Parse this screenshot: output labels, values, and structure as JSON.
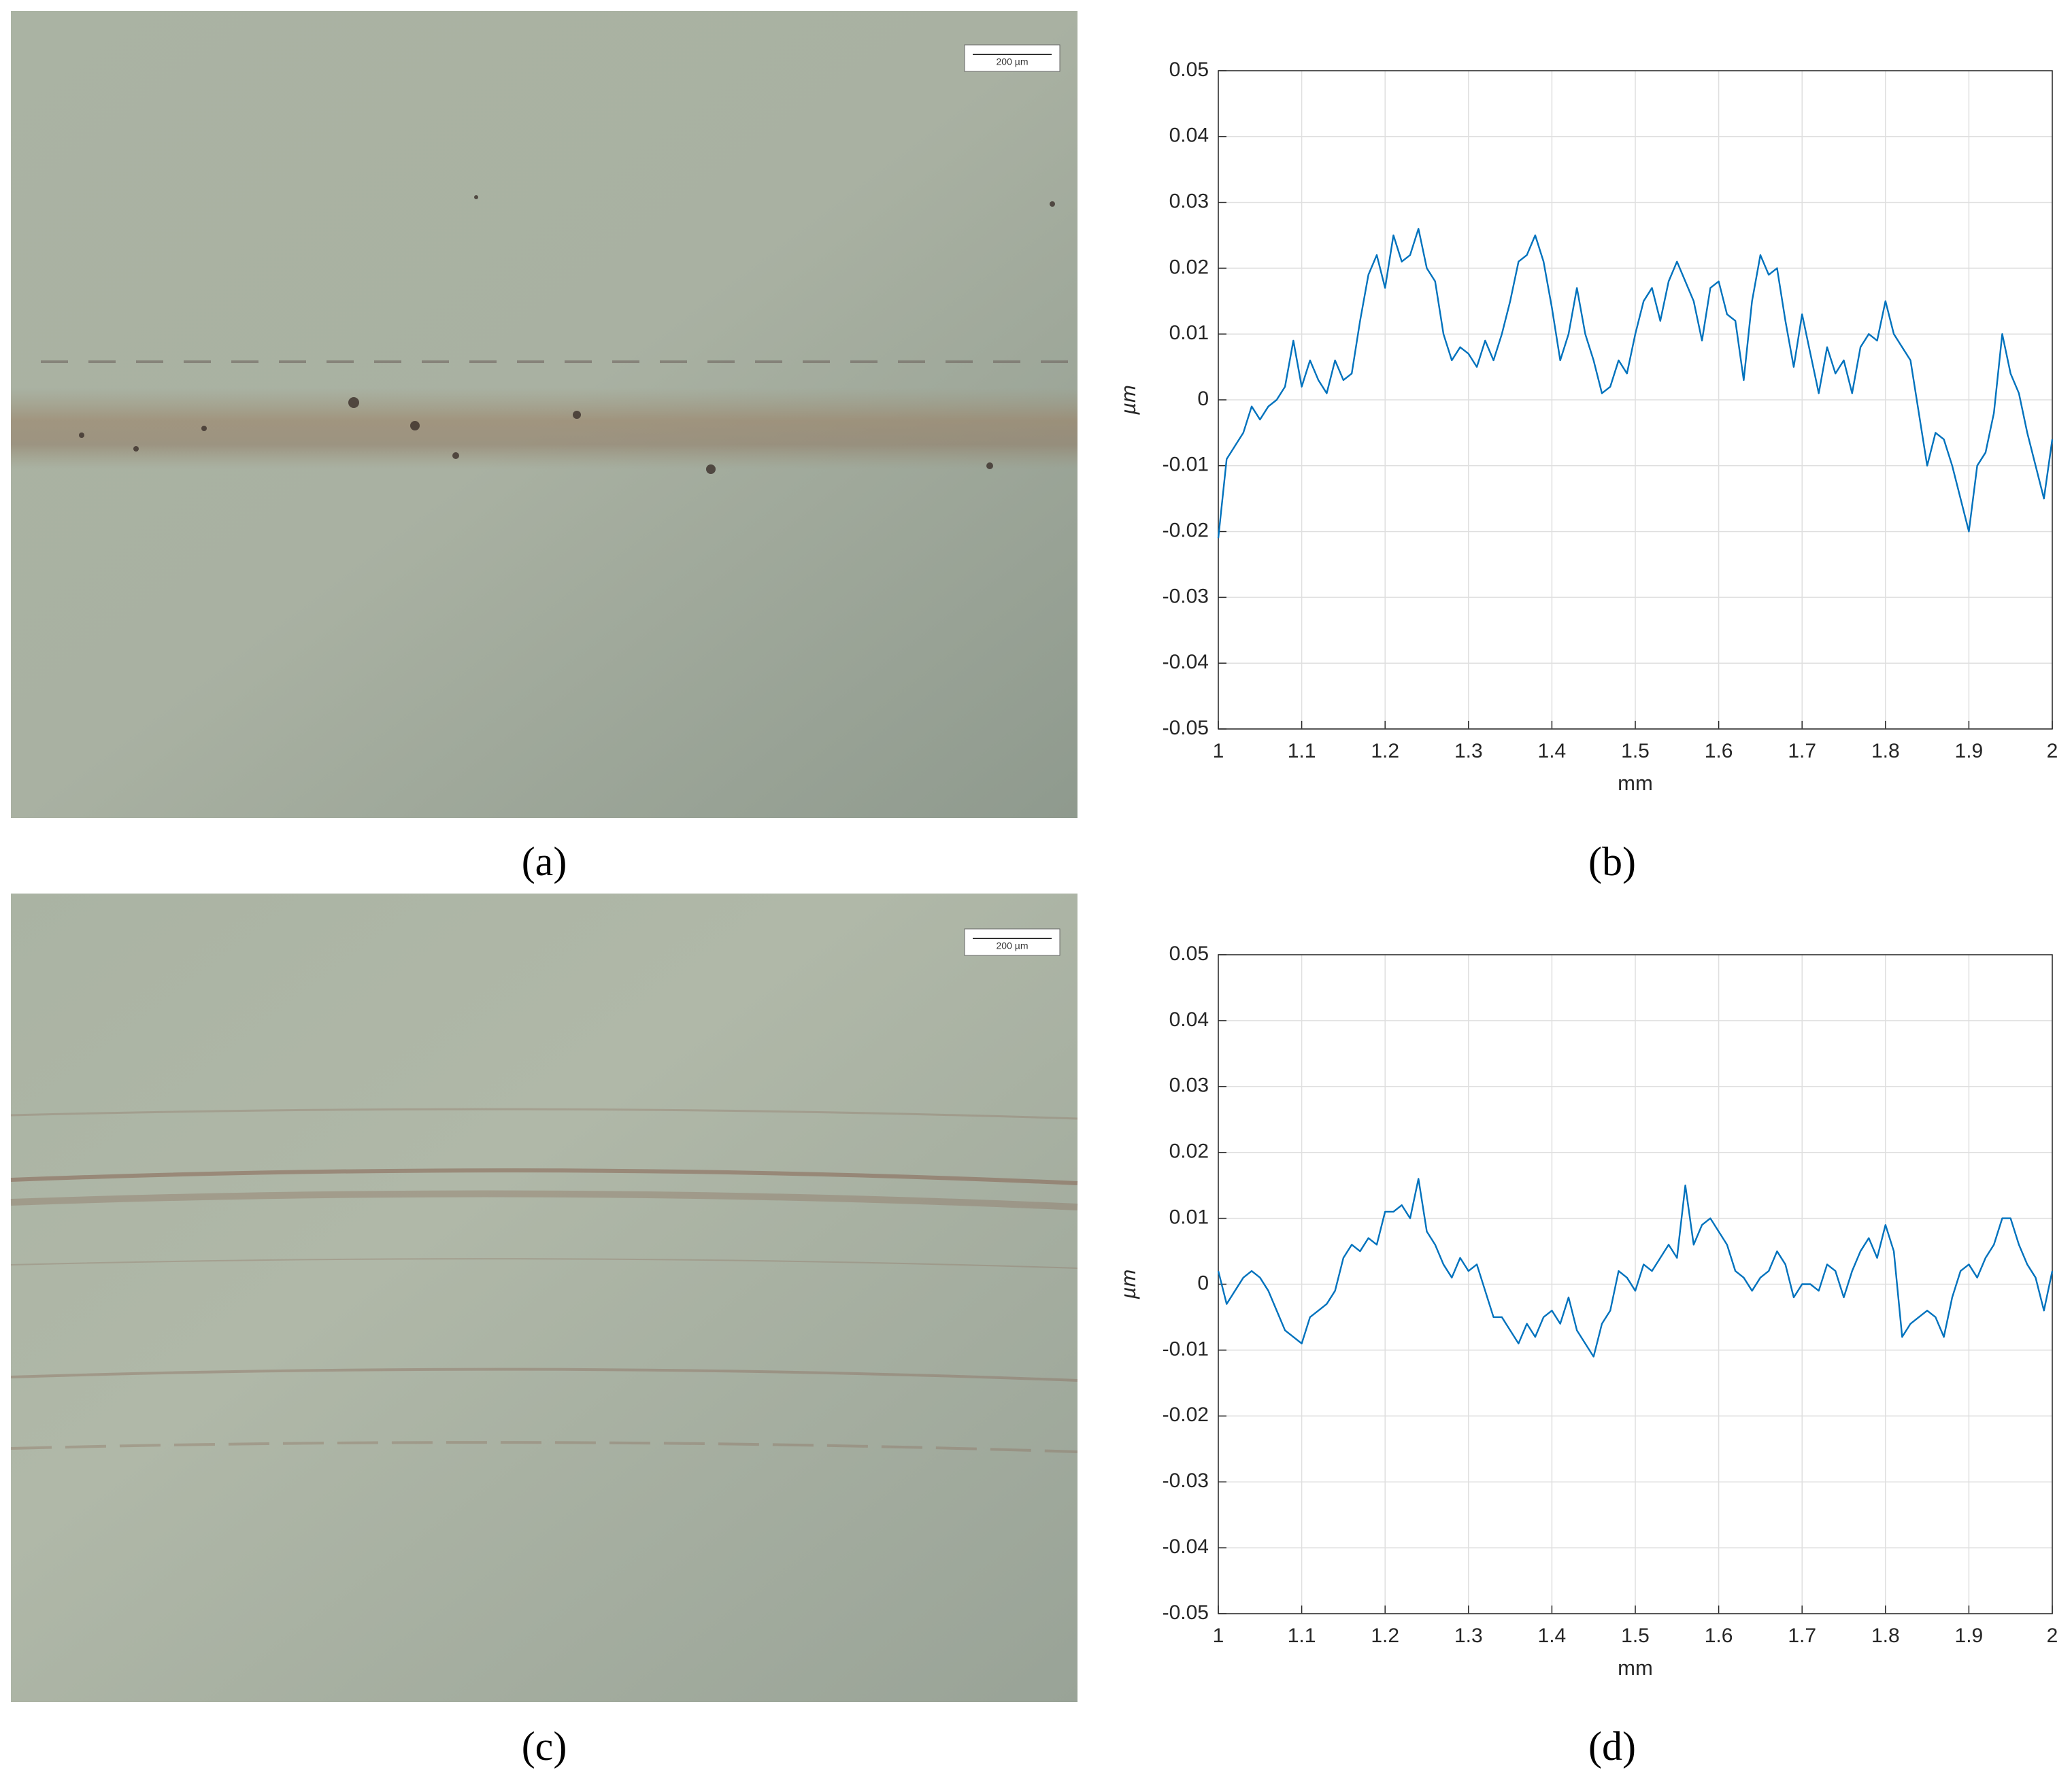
{
  "panels": [
    {
      "label": "(a)",
      "scale_bar": "200 µm"
    },
    {
      "label": "(b)"
    },
    {
      "label": "(c)",
      "scale_bar": "200 µm"
    },
    {
      "label": "(d)"
    }
  ],
  "chart_data": [
    {
      "type": "line",
      "xlabel": "mm",
      "ylabel": "µm",
      "color": "#0072bd",
      "grid": true,
      "xlim": [
        1,
        2
      ],
      "ylim": [
        -0.05,
        0.05
      ],
      "xticks": [
        1,
        1.1,
        1.2,
        1.3,
        1.4,
        1.5,
        1.6,
        1.7,
        1.8,
        1.9,
        2
      ],
      "yticks": [
        -0.05,
        -0.04,
        -0.03,
        -0.02,
        -0.01,
        0,
        0.01,
        0.02,
        0.03,
        0.04,
        0.05
      ],
      "x": [
        1,
        1.01,
        1.02,
        1.03,
        1.04,
        1.05,
        1.06,
        1.07,
        1.08,
        1.09,
        1.1,
        1.11,
        1.12,
        1.13,
        1.14,
        1.15,
        1.16,
        1.17,
        1.18,
        1.19,
        1.2,
        1.21,
        1.22,
        1.23,
        1.24,
        1.25,
        1.26,
        1.27,
        1.28,
        1.29,
        1.3,
        1.31,
        1.32,
        1.33,
        1.34,
        1.35,
        1.36,
        1.37,
        1.38,
        1.39,
        1.4,
        1.41,
        1.42,
        1.43,
        1.44,
        1.45,
        1.46,
        1.47,
        1.48,
        1.49,
        1.5,
        1.51,
        1.52,
        1.53,
        1.54,
        1.55,
        1.56,
        1.57,
        1.58,
        1.59,
        1.6,
        1.61,
        1.62,
        1.63,
        1.64,
        1.65,
        1.66,
        1.67,
        1.68,
        1.69,
        1.7,
        1.71,
        1.72,
        1.73,
        1.74,
        1.75,
        1.76,
        1.77,
        1.78,
        1.79,
        1.8,
        1.81,
        1.82,
        1.83,
        1.84,
        1.85,
        1.86,
        1.87,
        1.88,
        1.89,
        1.9,
        1.91,
        1.92,
        1.93,
        1.94,
        1.95,
        1.96,
        1.97,
        1.98,
        1.99,
        2
      ],
      "values": [
        -0.021,
        -0.009,
        -0.007,
        -0.005,
        -0.001,
        -0.003,
        -0.001,
        0.0,
        0.002,
        0.009,
        0.002,
        0.006,
        0.003,
        0.001,
        0.006,
        0.003,
        0.004,
        0.012,
        0.019,
        0.022,
        0.017,
        0.025,
        0.021,
        0.022,
        0.026,
        0.02,
        0.018,
        0.01,
        0.006,
        0.008,
        0.007,
        0.005,
        0.009,
        0.006,
        0.01,
        0.015,
        0.021,
        0.022,
        0.025,
        0.021,
        0.014,
        0.006,
        0.01,
        0.017,
        0.01,
        0.006,
        0.001,
        0.002,
        0.006,
        0.004,
        0.01,
        0.015,
        0.017,
        0.012,
        0.018,
        0.021,
        0.018,
        0.015,
        0.009,
        0.017,
        0.018,
        0.013,
        0.012,
        0.003,
        0.015,
        0.022,
        0.019,
        0.02,
        0.012,
        0.005,
        0.013,
        0.007,
        0.001,
        0.008,
        0.004,
        0.006,
        0.001,
        0.008,
        0.01,
        0.009,
        0.015,
        0.01,
        0.008,
        0.006,
        -0.002,
        -0.01,
        -0.005,
        -0.006,
        -0.01,
        -0.015,
        -0.02,
        -0.01,
        -0.008,
        -0.002,
        0.01,
        0.004,
        0.001,
        -0.005,
        -0.01,
        -0.015,
        -0.006
      ]
    },
    {
      "type": "line",
      "xlabel": "mm",
      "ylabel": "µm",
      "color": "#0072bd",
      "grid": true,
      "xlim": [
        1,
        2
      ],
      "ylim": [
        -0.05,
        0.05
      ],
      "xticks": [
        1,
        1.1,
        1.2,
        1.3,
        1.4,
        1.5,
        1.6,
        1.7,
        1.8,
        1.9,
        2
      ],
      "yticks": [
        -0.05,
        -0.04,
        -0.03,
        -0.02,
        -0.01,
        0,
        0.01,
        0.02,
        0.03,
        0.04,
        0.05
      ],
      "x": [
        1,
        1.01,
        1.02,
        1.03,
        1.04,
        1.05,
        1.06,
        1.07,
        1.08,
        1.09,
        1.1,
        1.11,
        1.12,
        1.13,
        1.14,
        1.15,
        1.16,
        1.17,
        1.18,
        1.19,
        1.2,
        1.21,
        1.22,
        1.23,
        1.24,
        1.25,
        1.26,
        1.27,
        1.28,
        1.29,
        1.3,
        1.31,
        1.32,
        1.33,
        1.34,
        1.35,
        1.36,
        1.37,
        1.38,
        1.39,
        1.4,
        1.41,
        1.42,
        1.43,
        1.44,
        1.45,
        1.46,
        1.47,
        1.48,
        1.49,
        1.5,
        1.51,
        1.52,
        1.53,
        1.54,
        1.55,
        1.56,
        1.57,
        1.58,
        1.59,
        1.6,
        1.61,
        1.62,
        1.63,
        1.64,
        1.65,
        1.66,
        1.67,
        1.68,
        1.69,
        1.7,
        1.71,
        1.72,
        1.73,
        1.74,
        1.75,
        1.76,
        1.77,
        1.78,
        1.79,
        1.8,
        1.81,
        1.82,
        1.83,
        1.84,
        1.85,
        1.86,
        1.87,
        1.88,
        1.89,
        1.9,
        1.91,
        1.92,
        1.93,
        1.94,
        1.95,
        1.96,
        1.97,
        1.98,
        1.99,
        2
      ],
      "values": [
        0.002,
        -0.003,
        -0.001,
        0.001,
        0.002,
        0.001,
        -0.001,
        -0.004,
        -0.007,
        -0.008,
        -0.009,
        -0.005,
        -0.004,
        -0.003,
        -0.001,
        0.004,
        0.006,
        0.005,
        0.007,
        0.006,
        0.011,
        0.011,
        0.012,
        0.01,
        0.016,
        0.008,
        0.006,
        0.003,
        0.001,
        0.004,
        0.002,
        0.003,
        -0.001,
        -0.005,
        -0.005,
        -0.007,
        -0.009,
        -0.006,
        -0.008,
        -0.005,
        -0.004,
        -0.006,
        -0.002,
        -0.007,
        -0.009,
        -0.011,
        -0.006,
        -0.004,
        0.002,
        0.001,
        -0.001,
        0.003,
        0.002,
        0.004,
        0.006,
        0.004,
        0.015,
        0.006,
        0.009,
        0.01,
        0.008,
        0.006,
        0.002,
        0.001,
        -0.001,
        0.001,
        0.002,
        0.005,
        0.003,
        -0.002,
        0.0,
        0.0,
        -0.001,
        0.003,
        0.002,
        -0.002,
        0.002,
        0.005,
        0.007,
        0.004,
        0.009,
        0.005,
        -0.008,
        -0.006,
        -0.005,
        -0.004,
        -0.005,
        -0.008,
        -0.002,
        0.002,
        0.003,
        0.001,
        0.004,
        0.006,
        0.01,
        0.01,
        0.006,
        0.003,
        0.001,
        -0.004,
        0.002
      ]
    }
  ]
}
